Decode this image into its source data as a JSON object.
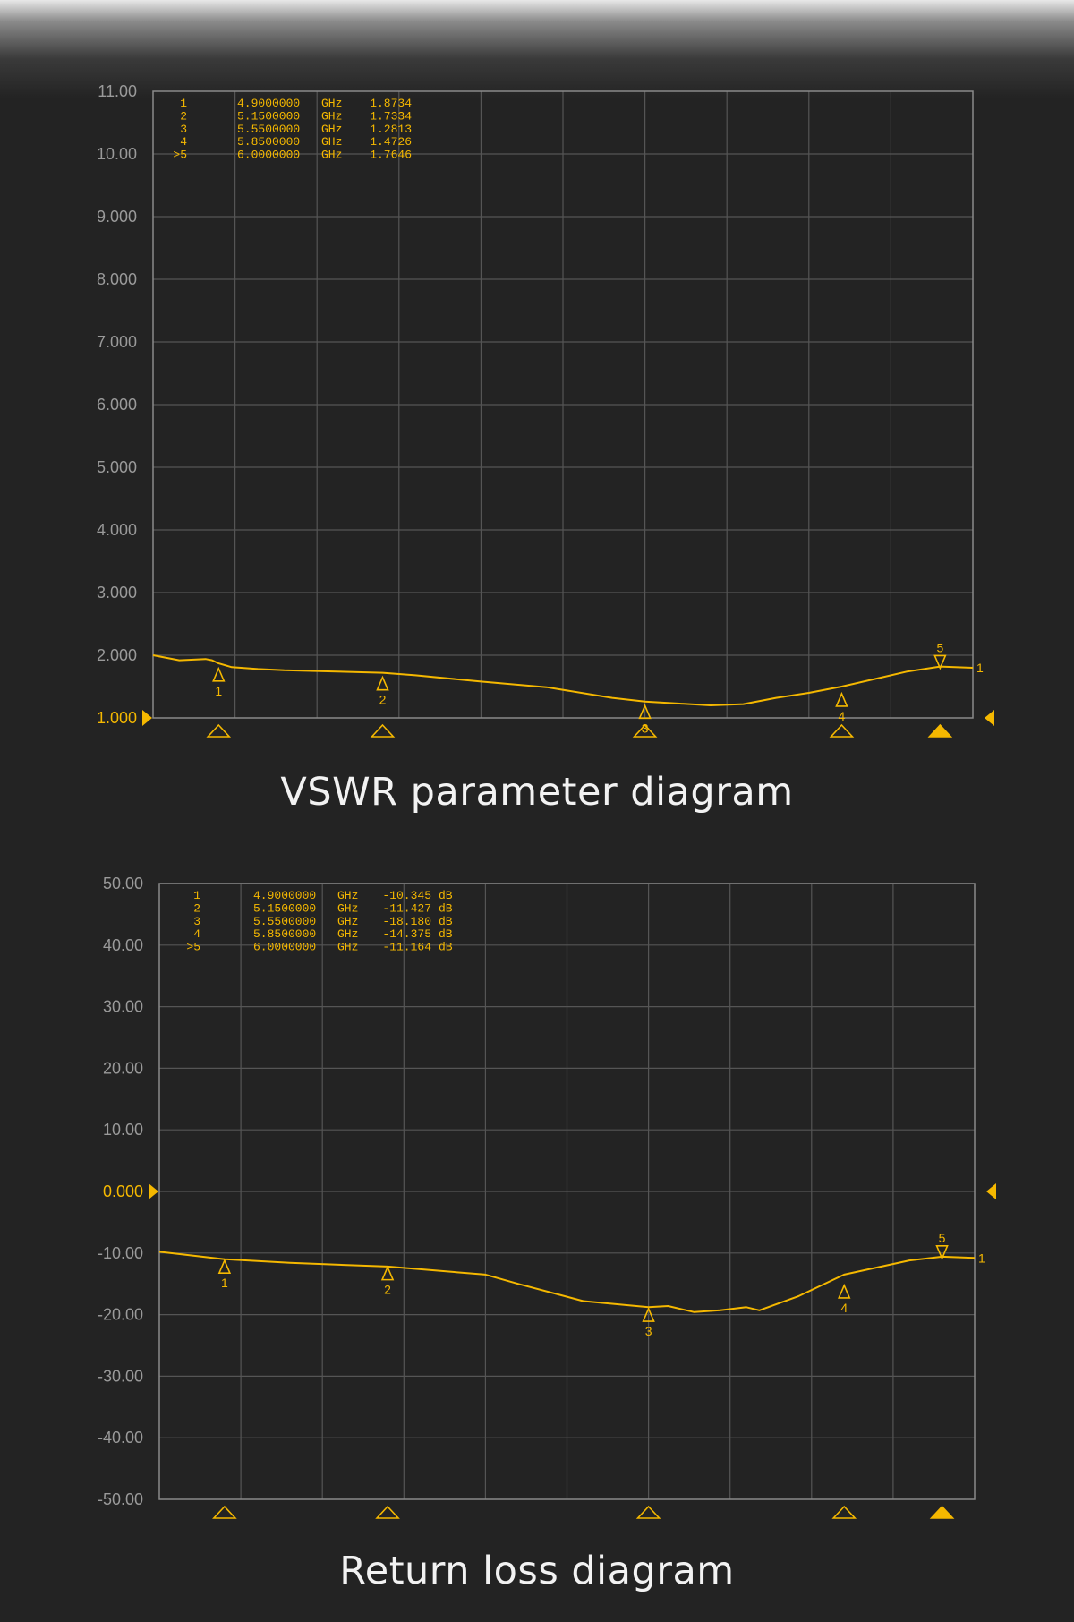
{
  "colors": {
    "background": "#232323",
    "grid": "#555555",
    "frame": "#8a8a8a",
    "trace": "#f5b800",
    "tick_label": "#9a9a9a",
    "caption": "#f2f2f2"
  },
  "chart_data": [
    {
      "type": "line",
      "caption": "VSWR parameter diagram",
      "ylim": [
        1.0,
        11.0
      ],
      "ytick_labels": [
        "11.00",
        "10.00",
        "9.000",
        "8.000",
        "7.000",
        "6.000",
        "5.000",
        "4.000",
        "3.000",
        "2.000",
        "1.000"
      ],
      "reference_level": "1.000",
      "xlim": [
        4.8,
        6.05
      ],
      "grid": "10x10",
      "marker_table": {
        "ids": [
          "1",
          "2",
          "3",
          "4",
          ">5"
        ],
        "freqs": [
          "4.9000000",
          "5.1500000",
          "5.5500000",
          "5.8500000",
          "6.0000000"
        ],
        "unit": "GHz",
        "values": [
          "1.8734",
          "1.7334",
          "1.2813",
          "1.4726",
          "1.7646"
        ]
      },
      "series": [
        {
          "x": [
            4.8,
            4.84,
            4.88,
            4.89,
            4.9,
            4.92,
            4.96,
            5.0,
            5.08,
            5.15,
            5.2,
            5.3,
            5.4,
            5.5,
            5.55,
            5.6,
            5.65,
            5.7,
            5.75,
            5.8,
            5.85,
            5.9,
            5.95,
            6.0,
            6.05
          ],
          "y": [
            2.0,
            1.92,
            1.94,
            1.92,
            1.87,
            1.81,
            1.78,
            1.76,
            1.74,
            1.72,
            1.68,
            1.58,
            1.49,
            1.32,
            1.26,
            1.23,
            1.2,
            1.22,
            1.32,
            1.4,
            1.5,
            1.62,
            1.74,
            1.82,
            1.8
          ]
        }
      ],
      "markers": [
        {
          "label": "1",
          "x": 4.9,
          "y": 1.8734,
          "style": "up"
        },
        {
          "label": "2",
          "x": 5.15,
          "y": 1.7334,
          "style": "up"
        },
        {
          "label": "3",
          "x": 5.55,
          "y": 1.2813,
          "style": "up"
        },
        {
          "label": "4",
          "x": 5.85,
          "y": 1.4726,
          "style": "up"
        },
        {
          "label": "5",
          "x": 6.0,
          "y": 1.7646,
          "style": "down"
        }
      ],
      "trace_end_label": "1"
    },
    {
      "type": "line",
      "caption": "Return loss diagram",
      "ylim": [
        -50.0,
        50.0
      ],
      "ytick_labels": [
        "50.00",
        "40.00",
        "30.00",
        "20.00",
        "10.00",
        "0.000",
        "-10.00",
        "-20.00",
        "-30.00",
        "-40.00",
        "-50.00"
      ],
      "reference_level": "0.000",
      "xlim": [
        4.8,
        6.05
      ],
      "grid": "10x10",
      "marker_table": {
        "ids": [
          "1",
          "2",
          "3",
          "4",
          ">5"
        ],
        "freqs": [
          "4.9000000",
          "5.1500000",
          "5.5500000",
          "5.8500000",
          "6.0000000"
        ],
        "unit": "GHz",
        "values": [
          "-10.345",
          "-11.427",
          "-18.180",
          "-14.375",
          "-11.164"
        ],
        "value_unit": "dB"
      },
      "series": [
        {
          "x": [
            4.8,
            4.9,
            5.0,
            5.15,
            5.3,
            5.35,
            5.45,
            5.55,
            5.58,
            5.62,
            5.66,
            5.7,
            5.72,
            5.78,
            5.85,
            5.88,
            5.95,
            6.0,
            6.05
          ],
          "y": [
            -9.8,
            -11.0,
            -11.6,
            -12.2,
            -13.5,
            -15.0,
            -17.8,
            -18.8,
            -18.6,
            -19.6,
            -19.3,
            -18.8,
            -19.3,
            -17.0,
            -13.5,
            -12.8,
            -11.2,
            -10.6,
            -10.8
          ]
        }
      ],
      "markers": [
        {
          "label": "1",
          "x": 4.9,
          "y": -10.345,
          "style": "up"
        },
        {
          "label": "2",
          "x": 5.15,
          "y": -11.427,
          "style": "up"
        },
        {
          "label": "3",
          "x": 5.55,
          "y": -18.18,
          "style": "up"
        },
        {
          "label": "4",
          "x": 5.85,
          "y": -14.375,
          "style": "up"
        },
        {
          "label": "5",
          "x": 6.0,
          "y": -11.164,
          "style": "down"
        }
      ],
      "trace_end_label": "1"
    }
  ]
}
